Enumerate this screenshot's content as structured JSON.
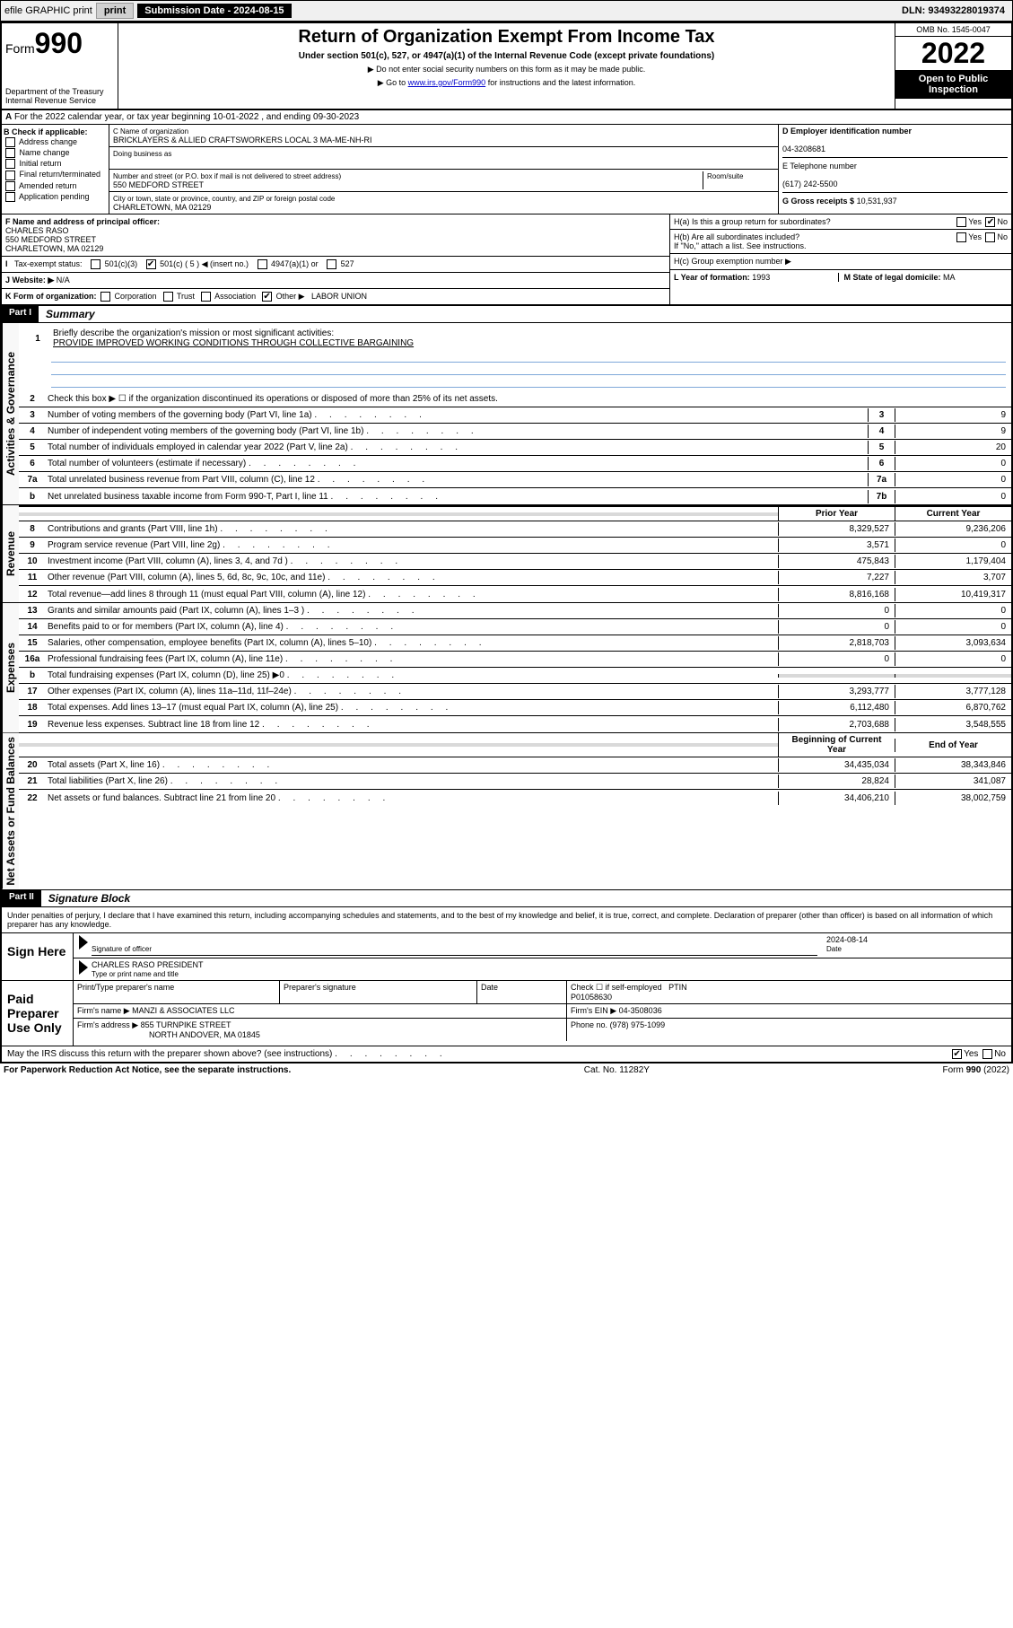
{
  "header": {
    "efile": "efile GRAPHIC print",
    "sub_date_label": "Submission Date - 2024-08-15",
    "dln": "DLN: 93493228019374"
  },
  "top": {
    "form": "Form",
    "num": "990",
    "dept": "Department of the Treasury",
    "irs": "Internal Revenue Service",
    "title": "Return of Organization Exempt From Income Tax",
    "sub": "Under section 501(c), 527, or 4947(a)(1) of the Internal Revenue Code (except private foundations)",
    "instr1": "▶ Do not enter social security numbers on this form as it may be made public.",
    "instr2_pre": "▶ Go to ",
    "instr2_link": "www.irs.gov/Form990",
    "instr2_post": " for instructions and the latest information.",
    "omb": "OMB No. 1545-0047",
    "year": "2022",
    "open": "Open to Public Inspection"
  },
  "rowA": "For the 2022 calendar year, or tax year beginning 10-01-2022    , and ending 09-30-2023",
  "colB": {
    "hdr": "B Check if applicable:",
    "items": [
      "Address change",
      "Name change",
      "Initial return",
      "Final return/terminated",
      "Amended return",
      "Application pending"
    ]
  },
  "colC": {
    "name_lbl": "C Name of organization",
    "name": "BRICKLAYERS & ALLIED CRAFTSWORKERS LOCAL 3 MA-ME-NH-RI",
    "dba_lbl": "Doing business as",
    "addr_lbl": "Number and street (or P.O. box if mail is not delivered to street address)",
    "room_lbl": "Room/suite",
    "addr": "550 MEDFORD STREET",
    "city_lbl": "City or town, state or province, country, and ZIP or foreign postal code",
    "city": "CHARLETOWN, MA  02129"
  },
  "colD": {
    "ein_lbl": "D Employer identification number",
    "ein": "04-3208681",
    "tel_lbl": "E Telephone number",
    "tel": "(617) 242-5500",
    "gross_lbl": "G Gross receipts $",
    "gross": "10,531,937"
  },
  "rowF": {
    "lbl": "F Name and address of principal officer:",
    "name": "CHARLES RASO",
    "addr1": "550 MEDFORD STREET",
    "addr2": "CHARLETOWN, MA  02129"
  },
  "rowI": {
    "lbl": "Tax-exempt status:",
    "opts": [
      "501(c)(3)",
      "501(c) ( 5 ) ◀ (insert no.)",
      "4947(a)(1) or",
      "527"
    ],
    "checked": 1
  },
  "rowJ": {
    "lbl": "J  Website: ▶",
    "val": "N/A"
  },
  "rowK": {
    "lbl": "K Form of organization:",
    "opts": [
      "Corporation",
      "Trust",
      "Association",
      "Other ▶"
    ],
    "other": "LABOR UNION",
    "checked": 3
  },
  "colH": {
    "ha": "H(a)  Is this a group return for subordinates?",
    "hb": "H(b)  Are all subordinates included?",
    "hb_note": "If \"No,\" attach a list. See instructions.",
    "hc": "H(c)  Group exemption number ▶",
    "ha_no_checked": true
  },
  "rowL": {
    "lbl": "L Year of formation:",
    "val": "1993"
  },
  "rowM": {
    "lbl": "M State of legal domicile:",
    "val": "MA"
  },
  "partI": {
    "hdr": "Part I",
    "title": "Summary",
    "line1_lbl": "Briefly describe the organization's mission or most significant activities:",
    "mission": "PROVIDE IMPROVED WORKING CONDITIONS THROUGH COLLECTIVE BARGAINING",
    "line2": "Check this box ▶ ☐  if the organization discontinued its operations or disposed of more than 25% of its net assets.",
    "cols": {
      "prior": "Prior Year",
      "current": "Current Year",
      "beg": "Beginning of Current Year",
      "end": "End of Year"
    },
    "sections": [
      {
        "side": "Activities & Governance",
        "lines": [
          {
            "n": "3",
            "t": "Number of voting members of the governing body (Part VI, line 1a)",
            "box": "3",
            "v": "9"
          },
          {
            "n": "4",
            "t": "Number of independent voting members of the governing body (Part VI, line 1b)",
            "box": "4",
            "v": "9"
          },
          {
            "n": "5",
            "t": "Total number of individuals employed in calendar year 2022 (Part V, line 2a)",
            "box": "5",
            "v": "20"
          },
          {
            "n": "6",
            "t": "Total number of volunteers (estimate if necessary)",
            "box": "6",
            "v": "0"
          },
          {
            "n": "7a",
            "t": "Total unrelated business revenue from Part VIII, column (C), line 12",
            "box": "7a",
            "v": "0"
          },
          {
            "n": "b",
            "t": "Net unrelated business taxable income from Form 990-T, Part I, line 11",
            "box": "7b",
            "v": "0"
          }
        ]
      },
      {
        "side": "Revenue",
        "lines": [
          {
            "n": "8",
            "t": "Contributions and grants (Part VIII, line 1h)",
            "p": "8,329,527",
            "c": "9,236,206"
          },
          {
            "n": "9",
            "t": "Program service revenue (Part VIII, line 2g)",
            "p": "3,571",
            "c": "0"
          },
          {
            "n": "10",
            "t": "Investment income (Part VIII, column (A), lines 3, 4, and 7d )",
            "p": "475,843",
            "c": "1,179,404"
          },
          {
            "n": "11",
            "t": "Other revenue (Part VIII, column (A), lines 5, 6d, 8c, 9c, 10c, and 11e)",
            "p": "7,227",
            "c": "3,707"
          },
          {
            "n": "12",
            "t": "Total revenue—add lines 8 through 11 (must equal Part VIII, column (A), line 12)",
            "p": "8,816,168",
            "c": "10,419,317"
          }
        ]
      },
      {
        "side": "Expenses",
        "lines": [
          {
            "n": "13",
            "t": "Grants and similar amounts paid (Part IX, column (A), lines 1–3 )",
            "p": "0",
            "c": "0"
          },
          {
            "n": "14",
            "t": "Benefits paid to or for members (Part IX, column (A), line 4)",
            "p": "0",
            "c": "0"
          },
          {
            "n": "15",
            "t": "Salaries, other compensation, employee benefits (Part IX, column (A), lines 5–10)",
            "p": "2,818,703",
            "c": "3,093,634"
          },
          {
            "n": "16a",
            "t": "Professional fundraising fees (Part IX, column (A), line 11e)",
            "p": "0",
            "c": "0"
          },
          {
            "n": "b",
            "t": "Total fundraising expenses (Part IX, column (D), line 25) ▶0",
            "shaded": true
          },
          {
            "n": "17",
            "t": "Other expenses (Part IX, column (A), lines 11a–11d, 11f–24e)",
            "p": "3,293,777",
            "c": "3,777,128"
          },
          {
            "n": "18",
            "t": "Total expenses. Add lines 13–17 (must equal Part IX, column (A), line 25)",
            "p": "6,112,480",
            "c": "6,870,762"
          },
          {
            "n": "19",
            "t": "Revenue less expenses. Subtract line 18 from line 12",
            "p": "2,703,688",
            "c": "3,548,555"
          }
        ]
      },
      {
        "side": "Net Assets or Fund Balances",
        "lines": [
          {
            "n": "20",
            "t": "Total assets (Part X, line 16)",
            "p": "34,435,034",
            "c": "38,343,846"
          },
          {
            "n": "21",
            "t": "Total liabilities (Part X, line 26)",
            "p": "28,824",
            "c": "341,087"
          },
          {
            "n": "22",
            "t": "Net assets or fund balances. Subtract line 21 from line 20",
            "p": "34,406,210",
            "c": "38,002,759"
          }
        ]
      }
    ]
  },
  "partII": {
    "hdr": "Part II",
    "title": "Signature Block",
    "penalties": "Under penalties of perjury, I declare that I have examined this return, including accompanying schedules and statements, and to the best of my knowledge and belief, it is true, correct, and complete. Declaration of preparer (other than officer) is based on all information of which preparer has any knowledge."
  },
  "sign": {
    "here": "Sign Here",
    "sig_lbl": "Signature of officer",
    "date_lbl": "Date",
    "date": "2024-08-14",
    "name": "CHARLES RASO PRESIDENT",
    "name_lbl": "Type or print name and title"
  },
  "paid": {
    "lbl": "Paid Preparer Use Only",
    "cols": [
      "Print/Type preparer's name",
      "Preparer's signature",
      "Date"
    ],
    "check_lbl": "Check ☐ if self-employed",
    "ptin_lbl": "PTIN",
    "ptin": "P01058630",
    "firm_name_lbl": "Firm's name    ▶",
    "firm_name": "MANZI & ASSOCIATES LLC",
    "firm_ein_lbl": "Firm's EIN ▶",
    "firm_ein": "04-3508036",
    "firm_addr_lbl": "Firm's address ▶",
    "firm_addr1": "855 TURNPIKE STREET",
    "firm_addr2": "NORTH ANDOVER, MA  01845",
    "phone_lbl": "Phone no.",
    "phone": "(978) 975-1099"
  },
  "discuss": "May the IRS discuss this return with the preparer shown above? (see instructions)",
  "discuss_yes": true,
  "footer": {
    "pra": "For Paperwork Reduction Act Notice, see the separate instructions.",
    "cat": "Cat. No. 11282Y",
    "form": "Form 990 (2022)"
  }
}
